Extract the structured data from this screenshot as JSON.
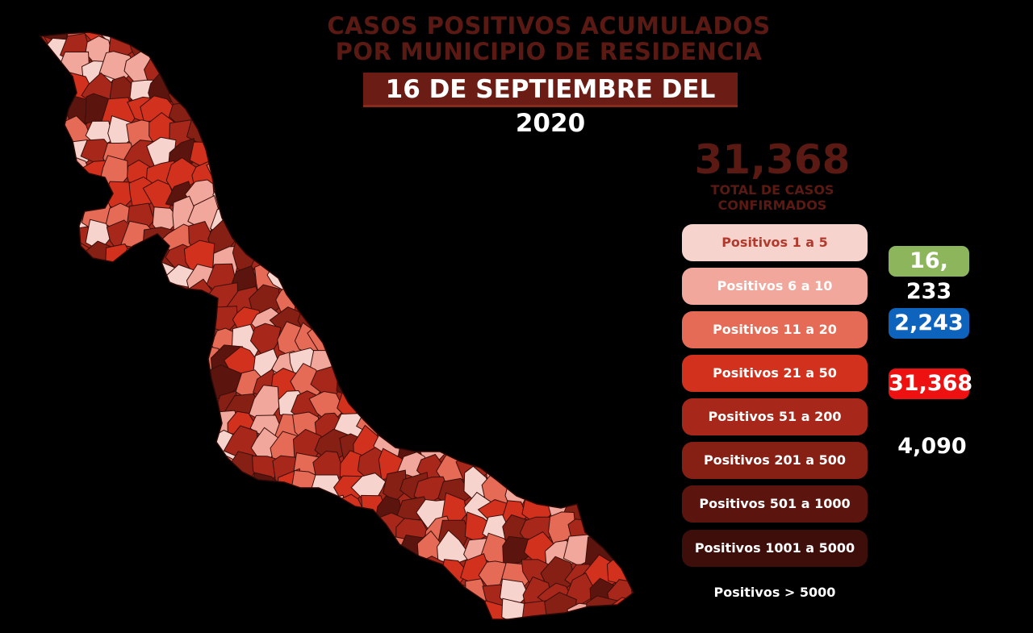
{
  "header": {
    "title_line1": "CASOS POSITIVOS ACUMULADOS",
    "title_line2": "POR MUNICIPIO DE RESIDENCIA",
    "date": "16 DE SEPTIEMBRE DEL 2020"
  },
  "summary": {
    "total": "31,368",
    "total_label_line1": "TOTAL DE CASOS",
    "total_label_line2": "CONFIRMADOS"
  },
  "legend": [
    {
      "label": "Positivos 1 a 5",
      "color": "#f7d3cd"
    },
    {
      "label": "Positivos 6 a 10",
      "color": "#f1a79b"
    },
    {
      "label": "Positivos 11 a 20",
      "color": "#e66b57"
    },
    {
      "label": "Positivos 21 a 50",
      "color": "#d2311d"
    },
    {
      "label": "Positivos 51 a 200",
      "color": "#a7281a"
    },
    {
      "label": "Positivos 201 a 500",
      "color": "#861f14"
    },
    {
      "label": "Positivos 501 a 1000",
      "color": "#5b150e"
    },
    {
      "label": "Positivos 1001 a 5000",
      "color": "#3e0f0a"
    },
    {
      "label": "Positivos > 5000",
      "color": "#000000"
    }
  ],
  "badges": {
    "green": {
      "value": "16, 233",
      "color": "#8db55c"
    },
    "blue": {
      "value": "2,243",
      "color": "#0e63bd"
    },
    "red": {
      "value": "31,368",
      "color": "#ee1111"
    },
    "plain": {
      "value": "4,090"
    }
  },
  "map": {
    "region_colors": [
      "#f7d3cd",
      "#f1a79b",
      "#e66b57",
      "#d2311d",
      "#a7281a",
      "#861f14",
      "#5b150e"
    ]
  }
}
